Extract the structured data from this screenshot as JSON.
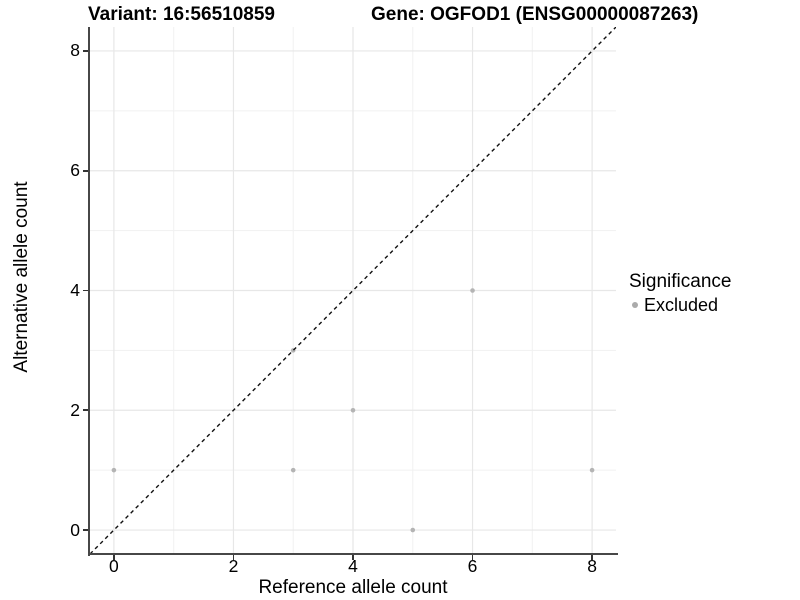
{
  "chart_data": {
    "type": "scatter",
    "title_left": "Variant: 16:56510859",
    "title_right": "Gene: OGFOD1 (ENSG00000087263)",
    "xlabel": "Reference allele count",
    "ylabel": "Alternative allele count",
    "points": [
      {
        "x": 0,
        "y": 1
      },
      {
        "x": 3,
        "y": 1
      },
      {
        "x": 3,
        "y": 3
      },
      {
        "x": 4,
        "y": 2
      },
      {
        "x": 5,
        "y": 0
      },
      {
        "x": 6,
        "y": 4
      },
      {
        "x": 8,
        "y": 1
      }
    ],
    "point_color": "#b4b4b4",
    "point_radius": 2.3,
    "x_ticks": [
      0,
      2,
      4,
      6,
      8
    ],
    "y_ticks": [
      0,
      2,
      4,
      6,
      8
    ],
    "x_minor": [
      1,
      3,
      5,
      7
    ],
    "y_minor": [
      1,
      3,
      5,
      7
    ],
    "xlim": [
      -0.4,
      8.4
    ],
    "ylim": [
      -0.4,
      8.4
    ],
    "grid": {
      "major_color": "#e7e7e7",
      "minor_color": "#f1f1f1"
    },
    "abline": {
      "slope": 1,
      "intercept": 0,
      "style": "dashed",
      "color": "#111111"
    },
    "legend": {
      "title": "Significance",
      "position": "right",
      "items": [
        {
          "label": "Excluded",
          "color": "#ababab"
        }
      ]
    }
  }
}
